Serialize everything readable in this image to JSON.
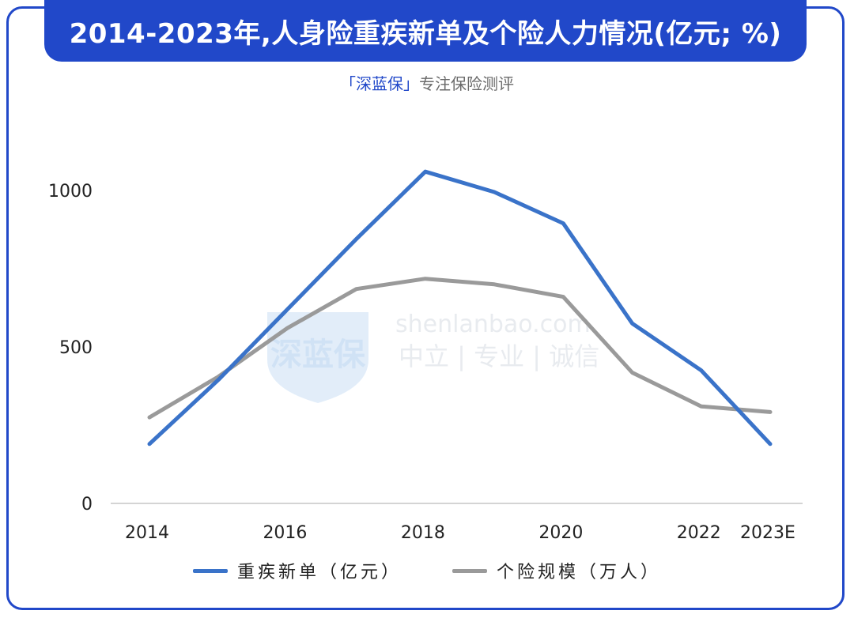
{
  "header": {
    "title": "2014-2023年,人身险重疾新单及个险人力情况(亿元; %)"
  },
  "subtitle": {
    "brand": "「深蓝保」",
    "text": "专注保险测评"
  },
  "watermark": {
    "logo_text": "深蓝保",
    "domain": "shenlanbao.com",
    "slogan": "中立 | 专业 | 诚信"
  },
  "colors": {
    "frame": "#2148c9",
    "series_1": "#3a73c9",
    "series_2": "#9a9a9a"
  },
  "chart_data": {
    "type": "line",
    "x": [
      "2014",
      "2015",
      "2016",
      "2017",
      "2018",
      "2019",
      "2020",
      "2021",
      "2022",
      "2023E"
    ],
    "tick_labels": [
      "2014",
      "2016",
      "2018",
      "2020",
      "2022",
      "2023E"
    ],
    "series": [
      {
        "name": "重疾新单（亿元）",
        "values": [
          190,
          395,
          620,
          845,
          1060,
          995,
          895,
          575,
          425,
          190
        ]
      },
      {
        "name": "个险规模（万人）",
        "values": [
          275,
          405,
          560,
          685,
          718,
          700,
          660,
          418,
          310,
          292
        ]
      }
    ],
    "y_ticks": [
      0,
      500,
      1000
    ],
    "ylim": [
      0,
      1200
    ],
    "grid": false,
    "legend": "bottom"
  }
}
